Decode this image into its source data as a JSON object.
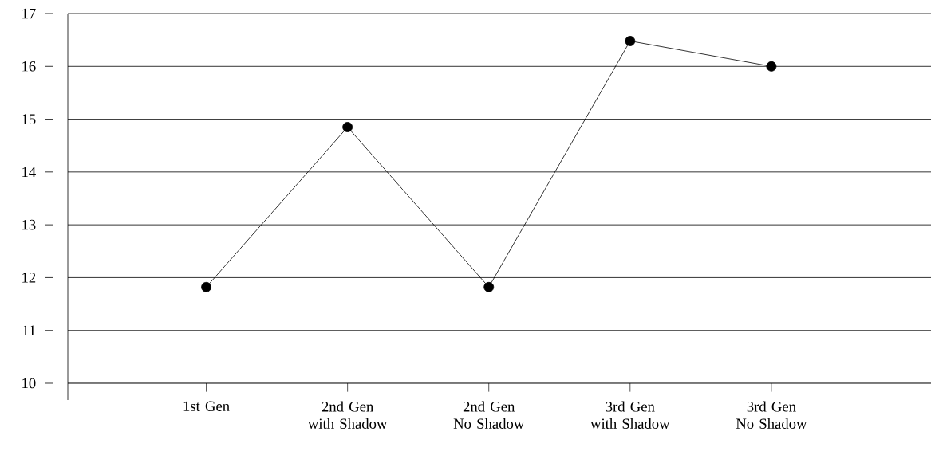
{
  "chart_data": {
    "type": "line",
    "categories": [
      "1st Gen",
      "2nd Gen with Shadow",
      "2nd Gen No Shadow",
      "3rd Gen with Shadow",
      "3rd Gen No Shadow"
    ],
    "series": [
      {
        "color": "#000000",
        "values": [
          11.82,
          14.85,
          11.82,
          16.48,
          16.0
        ]
      }
    ],
    "ylim": [
      10,
      17
    ],
    "yticks": [
      10,
      11,
      12,
      13,
      14,
      15,
      16,
      17
    ],
    "grid": "y",
    "marker": "circle",
    "line_style": "solid"
  }
}
